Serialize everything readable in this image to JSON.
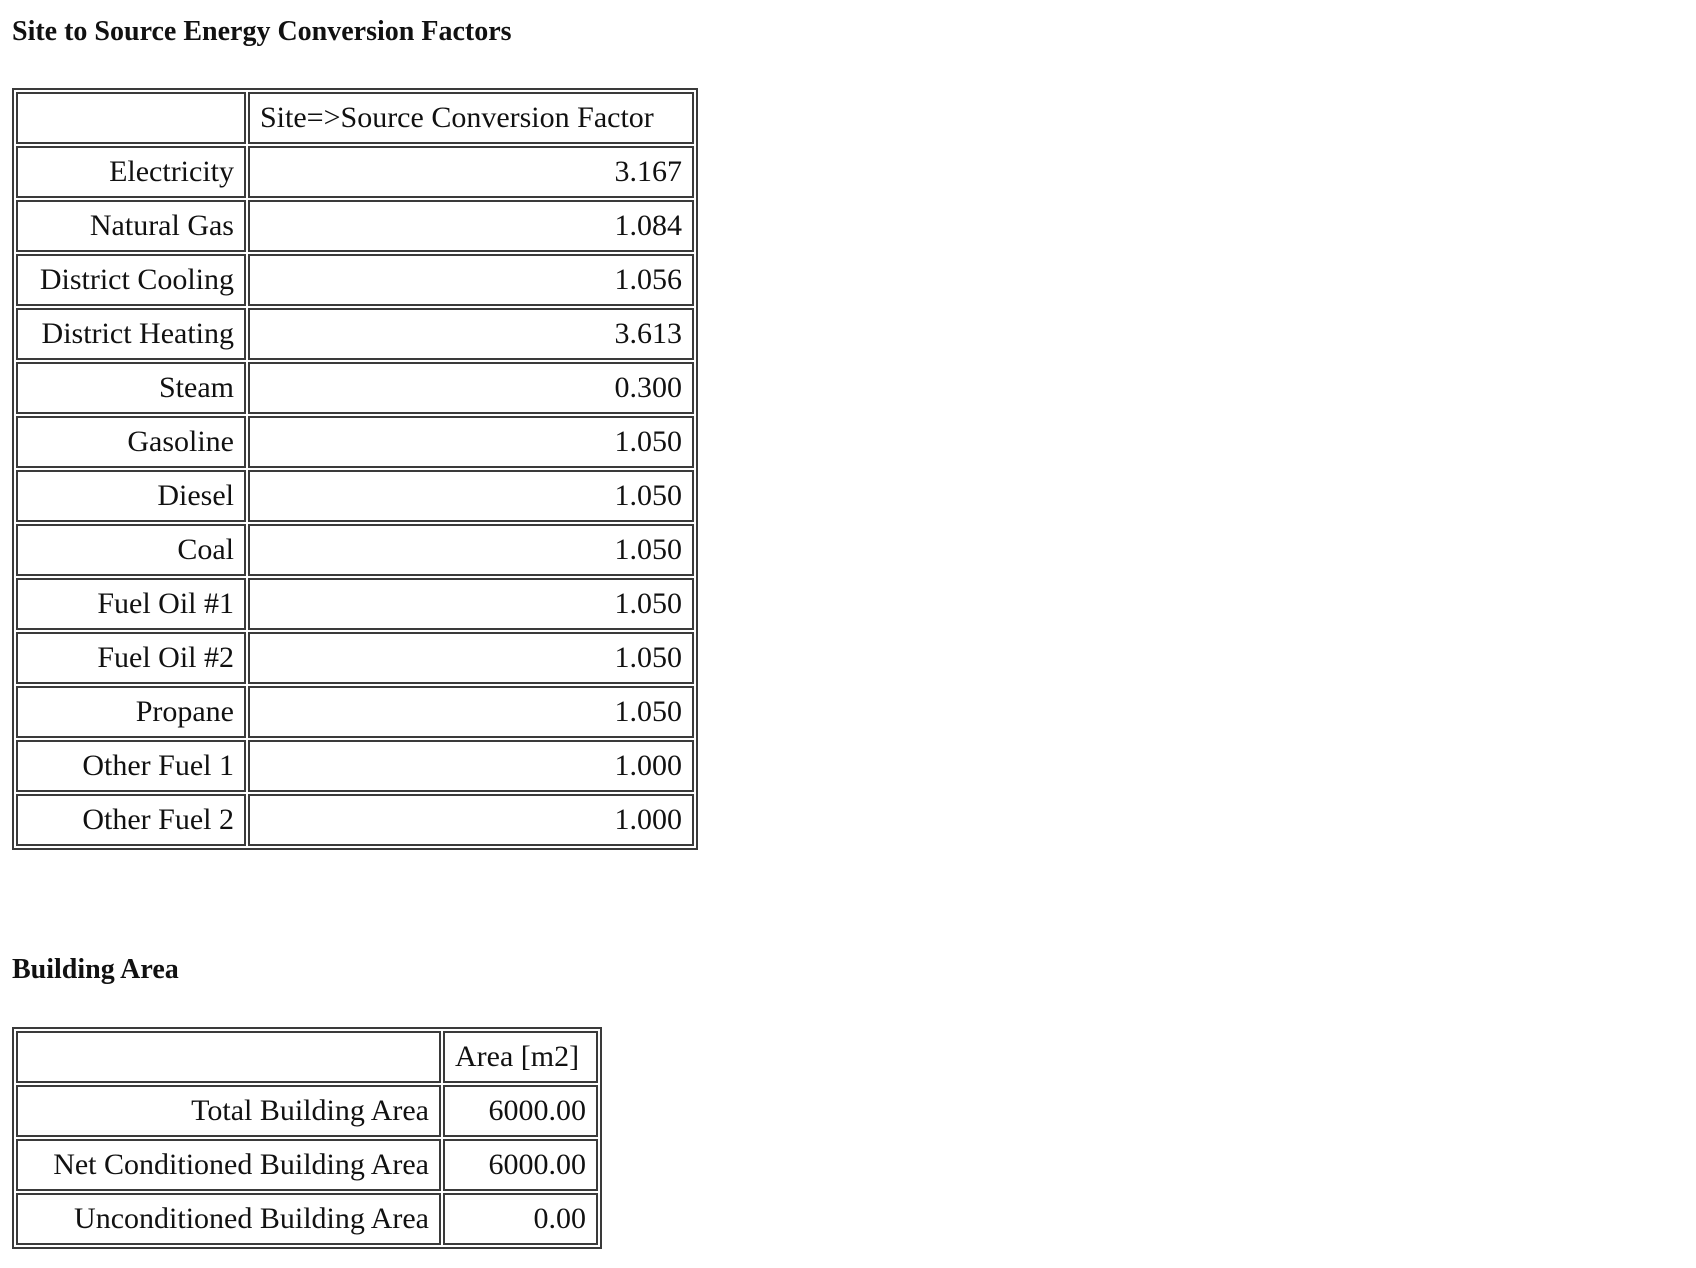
{
  "conversion": {
    "title": "Site to Source Energy Conversion Factors",
    "column_header": "Site=>Source Conversion Factor",
    "rows": [
      {
        "label": "Electricity",
        "value": "3.167"
      },
      {
        "label": "Natural Gas",
        "value": "1.084"
      },
      {
        "label": "District Cooling",
        "value": "1.056"
      },
      {
        "label": "District Heating",
        "value": "3.613"
      },
      {
        "label": "Steam",
        "value": "0.300"
      },
      {
        "label": "Gasoline",
        "value": "1.050"
      },
      {
        "label": "Diesel",
        "value": "1.050"
      },
      {
        "label": "Coal",
        "value": "1.050"
      },
      {
        "label": "Fuel Oil #1",
        "value": "1.050"
      },
      {
        "label": "Fuel Oil #2",
        "value": "1.050"
      },
      {
        "label": "Propane",
        "value": "1.050"
      },
      {
        "label": "Other Fuel 1",
        "value": "1.000"
      },
      {
        "label": "Other Fuel 2",
        "value": "1.000"
      }
    ]
  },
  "building_area": {
    "title": "Building Area",
    "column_header": "Area [m2]",
    "rows": [
      {
        "label": "Total Building Area",
        "value": "6000.00"
      },
      {
        "label": "Net Conditioned Building Area",
        "value": "6000.00"
      },
      {
        "label": "Unconditioned Building Area",
        "value": "0.00"
      }
    ]
  }
}
